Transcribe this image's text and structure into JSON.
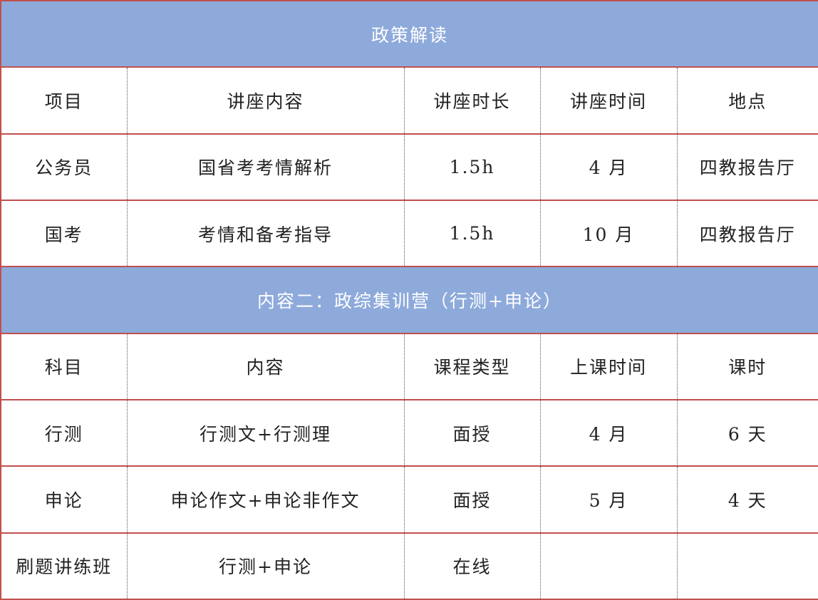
{
  "section1": {
    "title": "政策解读",
    "headers": [
      "项目",
      "讲座内容",
      "讲座时长",
      "讲座时间",
      "地点"
    ],
    "rows": [
      [
        "公务员",
        "国省考考情解析",
        "1.5h",
        "4 月",
        "四教报告厅"
      ],
      [
        "国考",
        "考情和备考指导",
        "1.5h",
        "10 月",
        "四教报告厅"
      ]
    ]
  },
  "section2": {
    "title": "内容二：政综集训营（行测+申论）",
    "headers": [
      "科目",
      "内容",
      "课程类型",
      "上课时间",
      "课时"
    ],
    "rows": [
      [
        "行测",
        "行测文+行测理",
        "面授",
        "4 月",
        "6 天"
      ],
      [
        "申论",
        "申论作文+申论非作文",
        "面授",
        "5 月",
        "4 天"
      ],
      [
        "刷题讲练班",
        "行测+申论",
        "在线",
        "",
        ""
      ]
    ]
  },
  "colors": {
    "header_bg": "#8eaadb",
    "border": "#c0504d"
  }
}
